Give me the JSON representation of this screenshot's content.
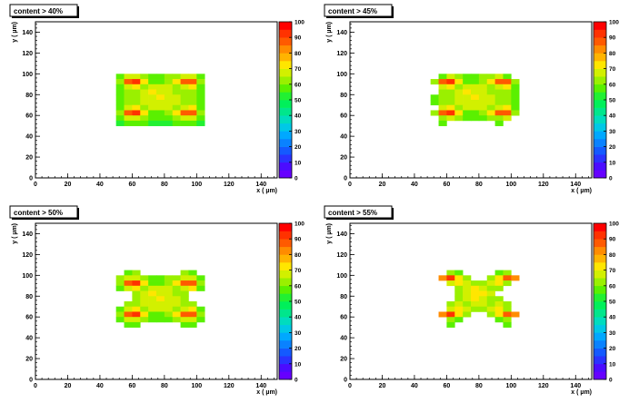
{
  "axes": {
    "xlabel": "x ( µm)",
    "ylabel": "y ( µm)",
    "xlim": [
      0,
      150
    ],
    "ylim": [
      0,
      150
    ],
    "xticks": [
      0,
      20,
      40,
      60,
      80,
      100,
      120,
      140
    ],
    "yticks": [
      0,
      20,
      40,
      60,
      80,
      100,
      120,
      140
    ],
    "zlim": [
      0,
      100
    ],
    "zticks": [
      0,
      10,
      20,
      30,
      40,
      50,
      60,
      70,
      80,
      90,
      100
    ],
    "bin_size": 5
  },
  "chart_data": [
    {
      "type": "heatmap",
      "title": "content > 40%",
      "x_bin_starts": [
        50,
        55,
        60,
        65,
        70,
        75,
        80,
        85,
        90,
        95,
        100
      ],
      "y_bin_starts": [
        95,
        90,
        85,
        80,
        75,
        70,
        65,
        60,
        55,
        50
      ],
      "values": [
        [
          55,
          65,
          68,
          60,
          58,
          58,
          60,
          62,
          65,
          68,
          55
        ],
        [
          60,
          88,
          90,
          70,
          58,
          58,
          60,
          72,
          88,
          85,
          60
        ],
        [
          55,
          68,
          70,
          62,
          65,
          67,
          66,
          62,
          68,
          72,
          55
        ],
        [
          55,
          62,
          63,
          66,
          70,
          68,
          67,
          64,
          62,
          60,
          55
        ],
        [
          55,
          60,
          63,
          65,
          68,
          70,
          68,
          65,
          63,
          60,
          55
        ],
        [
          55,
          60,
          63,
          65,
          68,
          68,
          66,
          65,
          63,
          60,
          55
        ],
        [
          55,
          68,
          70,
          62,
          65,
          66,
          66,
          62,
          66,
          70,
          55
        ],
        [
          60,
          88,
          90,
          70,
          58,
          58,
          60,
          72,
          88,
          85,
          60
        ],
        [
          55,
          65,
          68,
          60,
          58,
          58,
          58,
          60,
          65,
          68,
          55
        ],
        [
          50,
          55,
          55,
          55,
          50,
          50,
          50,
          55,
          55,
          55,
          50
        ]
      ]
    },
    {
      "type": "heatmap",
      "title": "content > 45%",
      "x_bin_starts": [
        50,
        55,
        60,
        65,
        70,
        75,
        80,
        85,
        90,
        95,
        100
      ],
      "y_bin_starts": [
        95,
        90,
        85,
        80,
        75,
        70,
        65,
        60,
        55,
        50
      ],
      "values": [
        [
          null,
          58,
          66,
          60,
          58,
          58,
          60,
          62,
          66,
          58,
          null
        ],
        [
          60,
          88,
          90,
          70,
          58,
          58,
          60,
          72,
          88,
          85,
          60
        ],
        [
          null,
          68,
          70,
          62,
          65,
          67,
          66,
          62,
          68,
          72,
          55
        ],
        [
          null,
          62,
          63,
          66,
          70,
          68,
          67,
          64,
          62,
          60,
          55
        ],
        [
          55,
          60,
          63,
          65,
          68,
          70,
          68,
          65,
          63,
          60,
          55
        ],
        [
          55,
          60,
          63,
          65,
          68,
          68,
          66,
          65,
          63,
          60,
          55
        ],
        [
          null,
          68,
          70,
          62,
          65,
          66,
          66,
          62,
          66,
          70,
          55
        ],
        [
          60,
          88,
          90,
          70,
          58,
          58,
          60,
          72,
          88,
          85,
          60
        ],
        [
          null,
          62,
          66,
          60,
          58,
          58,
          58,
          60,
          62,
          66,
          null
        ],
        [
          null,
          55,
          null,
          null,
          null,
          null,
          null,
          null,
          55,
          null,
          null
        ]
      ]
    },
    {
      "type": "heatmap",
      "title": "content > 50%",
      "x_bin_starts": [
        50,
        55,
        60,
        65,
        70,
        75,
        80,
        85,
        90,
        95,
        100
      ],
      "y_bin_starts": [
        100,
        95,
        90,
        85,
        80,
        75,
        70,
        65,
        60,
        55,
        50
      ],
      "values": [
        [
          null,
          55,
          60,
          null,
          null,
          null,
          null,
          null,
          60,
          55,
          null
        ],
        [
          60,
          65,
          68,
          60,
          58,
          58,
          60,
          62,
          65,
          66,
          55
        ],
        [
          60,
          88,
          90,
          70,
          58,
          58,
          60,
          72,
          88,
          85,
          60
        ],
        [
          55,
          68,
          70,
          62,
          65,
          67,
          66,
          62,
          68,
          72,
          55
        ],
        [
          null,
          null,
          63,
          66,
          70,
          68,
          67,
          64,
          62,
          null,
          null
        ],
        [
          null,
          null,
          63,
          65,
          68,
          70,
          68,
          65,
          63,
          null,
          null
        ],
        [
          null,
          60,
          63,
          65,
          68,
          68,
          66,
          65,
          63,
          60,
          null
        ],
        [
          55,
          68,
          70,
          62,
          65,
          66,
          66,
          62,
          66,
          70,
          55
        ],
        [
          60,
          88,
          90,
          70,
          58,
          58,
          60,
          72,
          88,
          85,
          60
        ],
        [
          55,
          65,
          68,
          60,
          58,
          58,
          58,
          60,
          65,
          68,
          55
        ],
        [
          null,
          55,
          55,
          null,
          null,
          null,
          null,
          null,
          55,
          55,
          null
        ]
      ]
    },
    {
      "type": "heatmap",
      "title": "content > 55%",
      "x_bin_starts": [
        50,
        55,
        60,
        65,
        70,
        75,
        80,
        85,
        90,
        95,
        100
      ],
      "y_bin_starts": [
        100,
        95,
        90,
        85,
        80,
        75,
        70,
        65,
        60,
        55,
        50
      ],
      "values": [
        [
          null,
          null,
          60,
          55,
          null,
          null,
          null,
          null,
          55,
          60,
          null
        ],
        [
          null,
          80,
          90,
          70,
          60,
          null,
          null,
          60,
          72,
          88,
          80
        ],
        [
          null,
          null,
          68,
          72,
          65,
          62,
          62,
          66,
          70,
          62,
          null
        ],
        [
          null,
          null,
          null,
          62,
          66,
          70,
          68,
          64,
          60,
          null,
          null
        ],
        [
          null,
          null,
          null,
          60,
          68,
          72,
          70,
          66,
          null,
          null,
          null
        ],
        [
          null,
          null,
          null,
          62,
          66,
          70,
          68,
          64,
          60,
          null,
          null
        ],
        [
          null,
          null,
          62,
          66,
          64,
          68,
          66,
          64,
          68,
          62,
          null
        ],
        [
          null,
          null,
          68,
          72,
          65,
          62,
          62,
          66,
          70,
          62,
          null
        ],
        [
          null,
          80,
          90,
          70,
          60,
          null,
          null,
          60,
          72,
          88,
          80
        ],
        [
          null,
          null,
          60,
          55,
          null,
          null,
          null,
          null,
          55,
          60,
          null
        ],
        [
          null,
          null,
          55,
          null,
          null,
          null,
          null,
          null,
          null,
          55,
          null
        ]
      ]
    }
  ]
}
